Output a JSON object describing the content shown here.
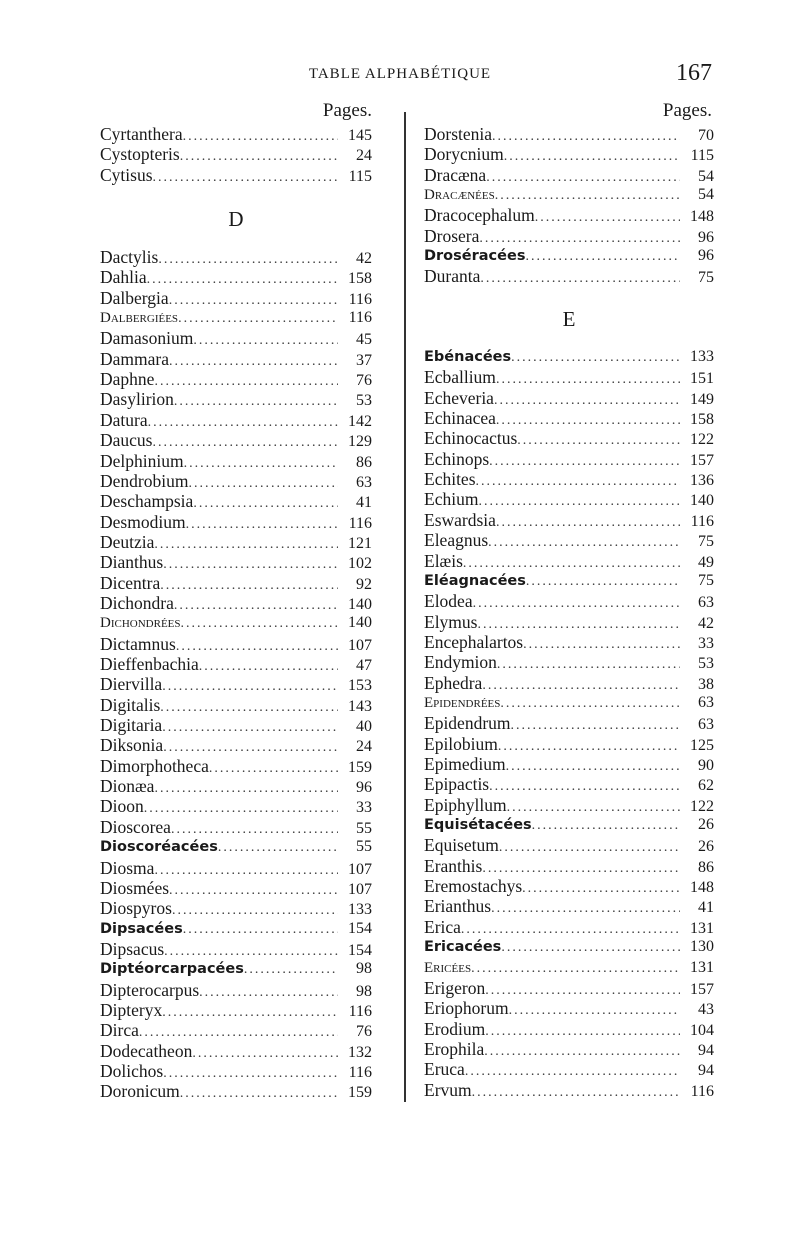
{
  "header": {
    "running_title": "TABLE ALPHABÉTIQUE",
    "page_number": "167"
  },
  "columns": [
    {
      "pages_label": "Pages.",
      "groups": [
        {
          "letter": "",
          "entries": [
            {
              "name": "Cyrtanthera",
              "page": "145"
            },
            {
              "name": "Cystopteris",
              "page": "24"
            },
            {
              "name": "Cytisus",
              "page": "115"
            }
          ]
        },
        {
          "letter": "D",
          "entries": [
            {
              "name": "Dactylis",
              "page": "42"
            },
            {
              "name": "Dahlia",
              "page": "158"
            },
            {
              "name": "Dalbergia",
              "page": "116"
            },
            {
              "name": "Dalbergiées",
              "page": "116",
              "kind": "tribe"
            },
            {
              "name": "Damasonium",
              "page": "45"
            },
            {
              "name": "Dammara",
              "page": "37"
            },
            {
              "name": "Daphne",
              "page": "76"
            },
            {
              "name": "Dasylirion",
              "page": "53"
            },
            {
              "name": "Datura",
              "page": "142"
            },
            {
              "name": "Daucus",
              "page": "129"
            },
            {
              "name": "Delphinium",
              "page": "86"
            },
            {
              "name": "Dendrobium",
              "page": "63"
            },
            {
              "name": "Deschampsia",
              "page": "41"
            },
            {
              "name": "Desmodium",
              "page": "116"
            },
            {
              "name": "Deutzia",
              "page": "121"
            },
            {
              "name": "Dianthus",
              "page": "102"
            },
            {
              "name": "Dicentra",
              "page": "92"
            },
            {
              "name": "Dichondra",
              "page": "140"
            },
            {
              "name": "Dichondrées",
              "page": "140",
              "kind": "tribe"
            },
            {
              "name": "Dictamnus",
              "page": "107"
            },
            {
              "name": "Dieffenbachia",
              "page": "47"
            },
            {
              "name": "Diervilla",
              "page": "153"
            },
            {
              "name": "Digitalis",
              "page": "143"
            },
            {
              "name": "Digitaria",
              "page": "40"
            },
            {
              "name": "Diksonia",
              "page": "24"
            },
            {
              "name": "Dimorphotheca",
              "page": "159"
            },
            {
              "name": "Dionæa",
              "page": "96"
            },
            {
              "name": "Dioon",
              "page": "33"
            },
            {
              "name": "Dioscorea",
              "page": "55"
            },
            {
              "name": "Dioscoréacées",
              "page": "55",
              "kind": "family"
            },
            {
              "name": "Diosma",
              "page": "107"
            },
            {
              "name": "Diosmées",
              "page": "107"
            },
            {
              "name": "Diospyros",
              "page": "133"
            },
            {
              "name": "Dipsacées",
              "page": "154",
              "kind": "family"
            },
            {
              "name": "Dipsacus",
              "page": "154"
            },
            {
              "name": "Diptéorcarpacées",
              "page": "98",
              "kind": "family"
            },
            {
              "name": "Dipterocarpus",
              "page": "98"
            },
            {
              "name": "Dipteryx",
              "page": "116"
            },
            {
              "name": "Dirca",
              "page": "76"
            },
            {
              "name": "Dodecatheon",
              "page": "132"
            },
            {
              "name": "Dolichos",
              "page": "116"
            },
            {
              "name": "Doronicum",
              "page": "159"
            }
          ]
        }
      ]
    },
    {
      "pages_label": "Pages.",
      "groups": [
        {
          "letter": "",
          "entries": [
            {
              "name": "Dorstenia",
              "page": "70"
            },
            {
              "name": "Dorycnium",
              "page": "115"
            },
            {
              "name": "Dracæna",
              "page": "54"
            },
            {
              "name": "Dracænées",
              "page": "54",
              "kind": "tribe"
            },
            {
              "name": "Dracocephalum",
              "page": "148"
            },
            {
              "name": "Drosera",
              "page": "96"
            },
            {
              "name": "Droséracées",
              "page": "96",
              "kind": "family"
            },
            {
              "name": "Duranta",
              "page": "75"
            }
          ]
        },
        {
          "letter": "E",
          "entries": [
            {
              "name": "Ebénacées",
              "page": "133",
              "kind": "family"
            },
            {
              "name": "Ecballium",
              "page": "151"
            },
            {
              "name": "Echeveria",
              "page": "149"
            },
            {
              "name": "Echinacea",
              "page": "158"
            },
            {
              "name": "Echinocactus",
              "page": "122"
            },
            {
              "name": "Echinops",
              "page": "157"
            },
            {
              "name": "Echites",
              "page": "136"
            },
            {
              "name": "Echium",
              "page": "140"
            },
            {
              "name": "Eswardsia",
              "page": "116"
            },
            {
              "name": "Eleagnus",
              "page": "75"
            },
            {
              "name": "Elæis",
              "page": "49"
            },
            {
              "name": "Eléagnacées",
              "page": "75",
              "kind": "family"
            },
            {
              "name": "Elodea",
              "page": "63"
            },
            {
              "name": "Elymus",
              "page": "42"
            },
            {
              "name": "Encephalartos",
              "page": "33"
            },
            {
              "name": "Endymion",
              "page": "53"
            },
            {
              "name": "Ephedra",
              "page": "38"
            },
            {
              "name": "Epidendrées",
              "page": "63",
              "kind": "tribe"
            },
            {
              "name": "Epidendrum",
              "page": "63"
            },
            {
              "name": "Epilobium",
              "page": "125"
            },
            {
              "name": "Epimedium",
              "page": "90"
            },
            {
              "name": "Epipactis",
              "page": "62"
            },
            {
              "name": "Epiphyllum",
              "page": "122"
            },
            {
              "name": "Equisétacées",
              "page": "26",
              "kind": "family"
            },
            {
              "name": "Equisetum",
              "page": "26"
            },
            {
              "name": "Eranthis",
              "page": "86"
            },
            {
              "name": "Eremostachys",
              "page": "148"
            },
            {
              "name": "Erianthus",
              "page": "41"
            },
            {
              "name": "Erica",
              "page": "131"
            },
            {
              "name": "Ericacées",
              "page": "130",
              "kind": "family"
            },
            {
              "name": "Ericées",
              "page": "131",
              "kind": "tribe"
            },
            {
              "name": "Erigeron",
              "page": "157"
            },
            {
              "name": "Eriophorum",
              "page": "43"
            },
            {
              "name": "Erodium",
              "page": "104"
            },
            {
              "name": "Erophila",
              "page": "94"
            },
            {
              "name": "Eruca",
              "page": "94"
            },
            {
              "name": "Ervum",
              "page": "116"
            }
          ]
        }
      ]
    }
  ]
}
